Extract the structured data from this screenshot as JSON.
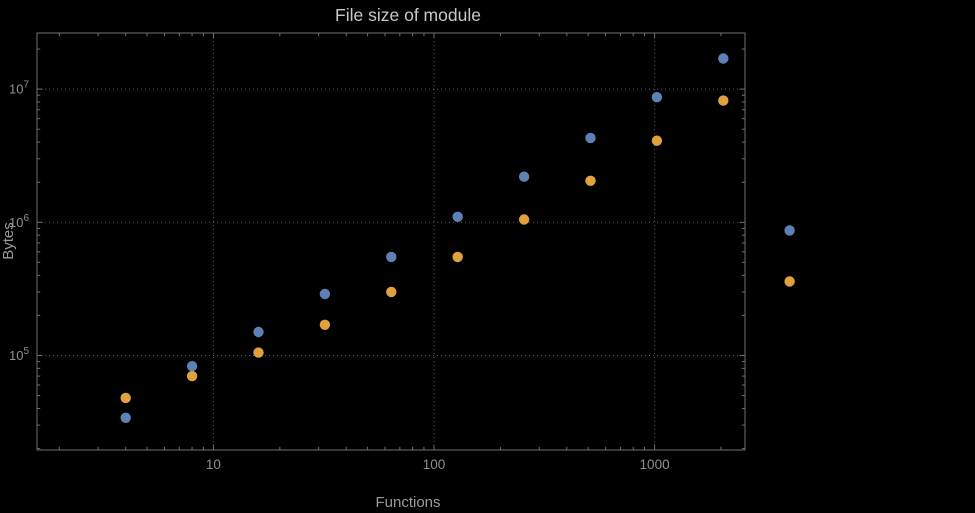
{
  "chart_data": {
    "type": "scatter",
    "title": "File size of module",
    "xlabel": "Functions",
    "ylabel": "Bytes",
    "x_scale": "log",
    "y_scale": "log",
    "x_range": [
      1.585,
      2570
    ],
    "y_range": [
      19500,
      26400000
    ],
    "grid": "dotted gridlines at decade ticks",
    "legend_position": "none",
    "x": [
      4,
      8,
      16,
      32,
      64,
      128,
      256,
      512,
      1024,
      2048,
      4096
    ],
    "series": [
      {
        "name": "blue",
        "color": "#5E81B5",
        "values": [
          34000,
          83000,
          150000,
          290000,
          550000,
          1100000,
          2200000,
          4300000,
          8700000,
          17000000,
          870000
        ]
      },
      {
        "name": "orange",
        "color": "#E1A13C",
        "values": [
          48000,
          70000,
          105000,
          170000,
          300000,
          550000,
          1050000,
          2050000,
          4100000,
          8200000,
          360000
        ]
      }
    ],
    "x_ticks": [
      {
        "value": 10,
        "label": "10"
      },
      {
        "value": 100,
        "label": "100"
      },
      {
        "value": 1000,
        "label": "1000"
      }
    ],
    "y_ticks": [
      {
        "value": 100000,
        "base": "10",
        "exponent": "5"
      },
      {
        "value": 1000000,
        "base": "10",
        "exponent": "6"
      },
      {
        "value": 10000000,
        "base": "10",
        "exponent": "7"
      }
    ],
    "colors": {
      "background": "#000000",
      "frame": "#6f6f6f",
      "grid": "#5a5a5a",
      "tick_labels": "#8f8f8f",
      "axis_labels": "#9a9a9a",
      "title": "#c8c8c8"
    }
  }
}
